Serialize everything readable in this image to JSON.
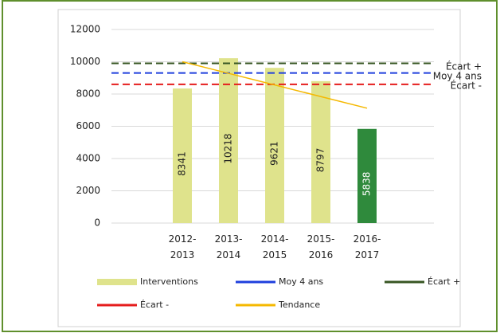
{
  "chart_data": {
    "type": "bar",
    "categories": [
      "2012-2013",
      "2013-2014",
      "2014-2015",
      "2015-2016",
      "2016-2017"
    ],
    "series": [
      {
        "name": "Interventions",
        "values": [
          8341,
          10218,
          9621,
          8797,
          5838
        ],
        "colors": [
          "#dfe38c",
          "#dfe38c",
          "#dfe38c",
          "#dfe38c",
          "#2f8a3c"
        ]
      },
      {
        "name": "Tendance",
        "type": "line",
        "color": "#f5b800",
        "values": [
          10000,
          9280,
          8560,
          7840,
          7120
        ]
      }
    ],
    "reference_lines": [
      {
        "name": "Moy 4 ans",
        "value": 9300,
        "color": "#1f3fdd"
      },
      {
        "name": "Écart +",
        "value": 9900,
        "color": "#375623"
      },
      {
        "name": "Écart -",
        "value": 8600,
        "color": "#e51c1c"
      }
    ],
    "ylim": [
      0,
      12000
    ],
    "yticks": [
      0,
      2000,
      4000,
      6000,
      8000,
      10000,
      12000
    ],
    "grid": true
  }
}
